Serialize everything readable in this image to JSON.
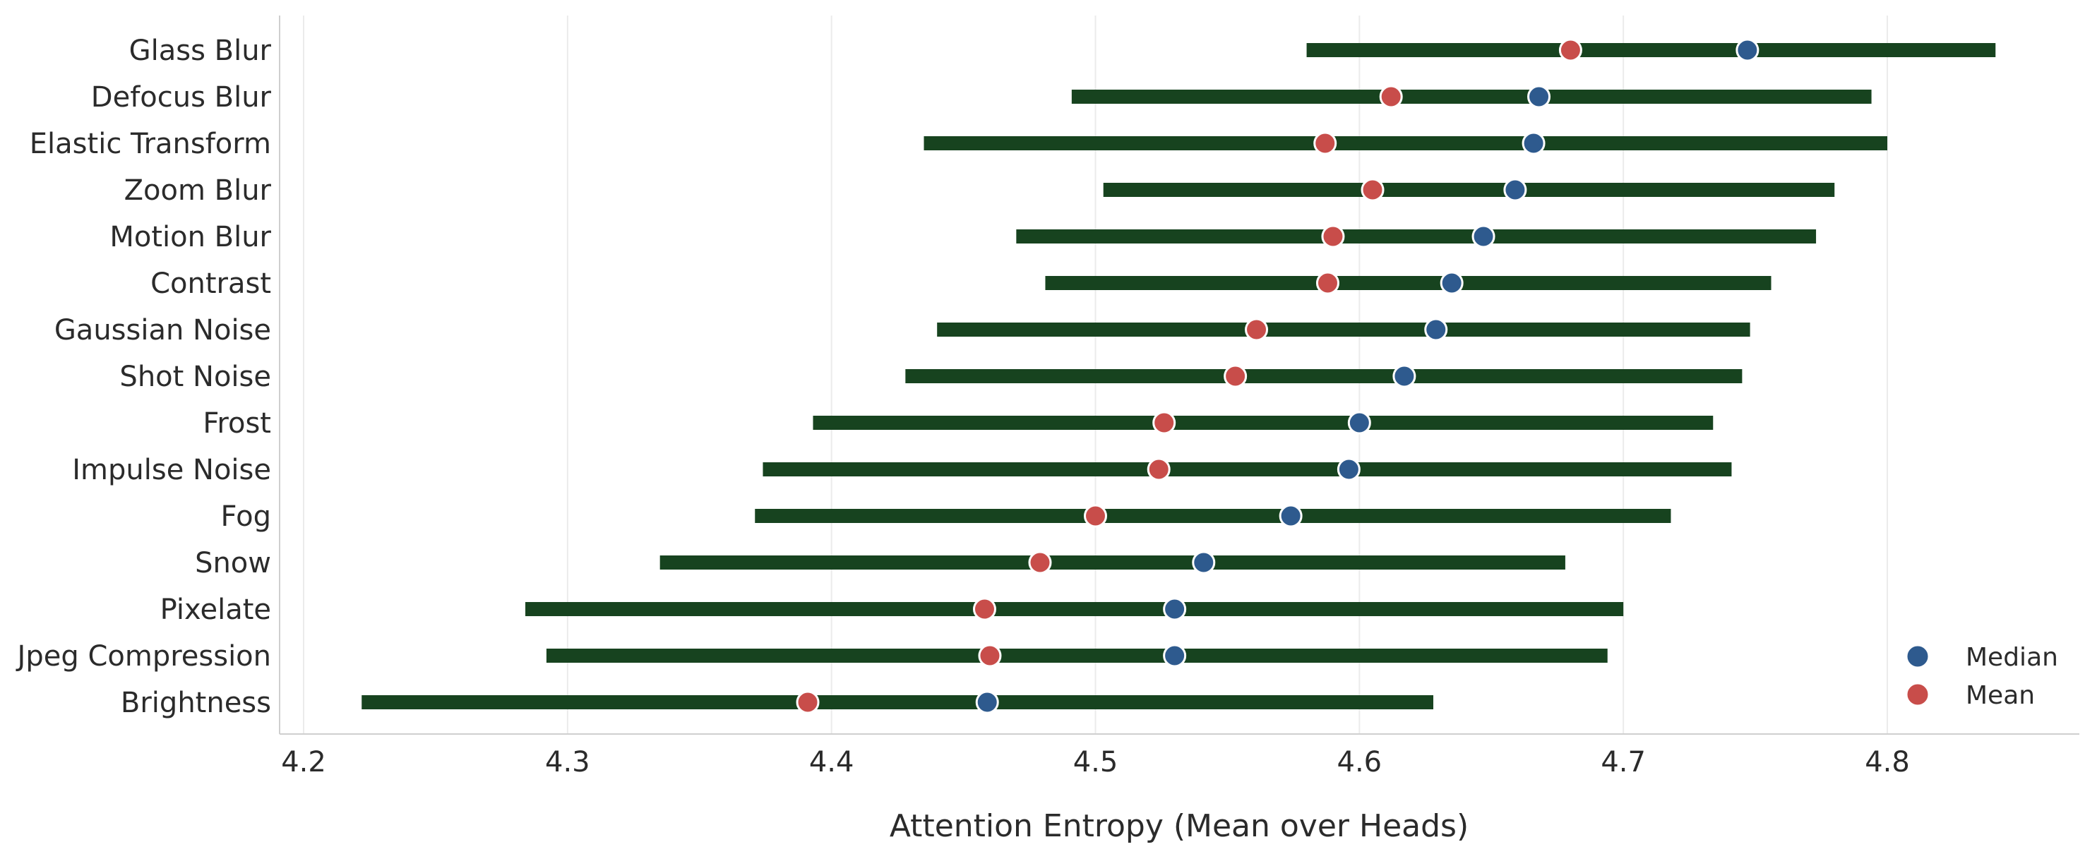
{
  "chart_data": {
    "type": "dot-range",
    "title": "",
    "xlabel": "Attention Entropy (Mean over Heads)",
    "ylabel": "",
    "xlim": [
      4.2,
      4.87
    ],
    "xticks": [
      "4.2",
      "4.3",
      "4.4",
      "4.5",
      "4.6",
      "4.7",
      "4.8"
    ],
    "grid": "vertical",
    "legend_position": "bottom-right",
    "categories": [
      "Glass Blur",
      "Defocus Blur",
      "Elastic Transform",
      "Zoom Blur",
      "Motion Blur",
      "Contrast",
      "Gaussian Noise",
      "Shot Noise",
      "Frost",
      "Impulse Noise",
      "Fog",
      "Snow",
      "Pixelate",
      "Jpeg Compression",
      "Brightness"
    ],
    "range_low": [
      4.58,
      4.491,
      4.435,
      4.503,
      4.47,
      4.481,
      4.44,
      4.428,
      4.393,
      4.374,
      4.371,
      4.335,
      4.284,
      4.292,
      4.222
    ],
    "range_high": [
      4.841,
      4.794,
      4.8,
      4.78,
      4.773,
      4.756,
      4.748,
      4.745,
      4.734,
      4.741,
      4.718,
      4.678,
      4.7,
      4.694,
      4.628
    ],
    "series": [
      {
        "name": "Median",
        "color": "#2e5a8e",
        "values": [
          4.747,
          4.668,
          4.666,
          4.659,
          4.647,
          4.635,
          4.629,
          4.617,
          4.6,
          4.596,
          4.574,
          4.541,
          4.53,
          4.53,
          4.459
        ]
      },
      {
        "name": "Mean",
        "color": "#c84d4a",
        "values": [
          4.68,
          4.612,
          4.587,
          4.605,
          4.59,
          4.588,
          4.561,
          4.553,
          4.526,
          4.524,
          4.5,
          4.479,
          4.458,
          4.46,
          4.391
        ]
      }
    ],
    "range_color": "#17431f"
  }
}
